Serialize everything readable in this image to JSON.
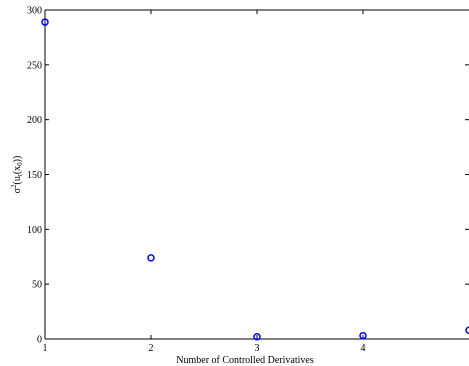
{
  "chart_data": {
    "type": "scatter",
    "title": "",
    "xlabel": "Number of Controlled Derivatives",
    "ylabel": {
      "base": "σ",
      "sup": "2",
      "mid": "(u",
      "sub": "t",
      "tail1": "(x",
      "sub2": "0",
      "tail2": "))"
    },
    "xlim": [
      1,
      5
    ],
    "ylim": [
      0,
      300
    ],
    "xticks": [
      1,
      2,
      3,
      4
    ],
    "yticks": [
      0,
      50,
      100,
      150,
      200,
      250,
      300
    ],
    "grid": false,
    "marker": "circle-open",
    "color": "#0000ff",
    "series": [
      {
        "x": [
          1,
          2,
          3,
          4,
          5
        ],
        "y": [
          289,
          74,
          2,
          3,
          8
        ]
      }
    ]
  }
}
